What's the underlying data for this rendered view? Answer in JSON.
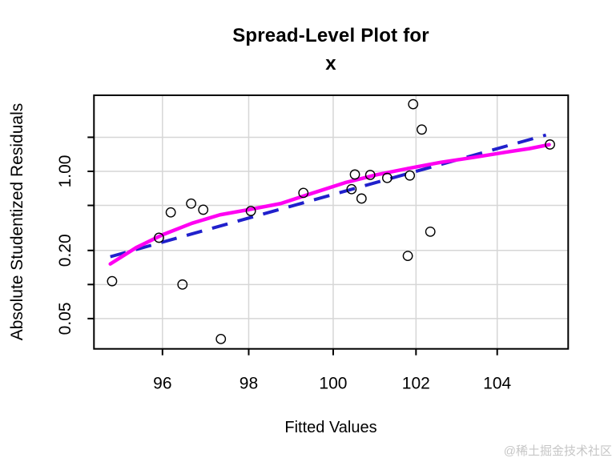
{
  "page": {
    "watermark": "@稀土掘金技术社区",
    "background": "#ffffff"
  },
  "chart_data": {
    "type": "scatter",
    "title_lines": [
      "Spread-Level Plot for",
      "x"
    ],
    "xlabel": "Fitted Values",
    "ylabel": "Absolute Studentized Residuals",
    "grid": {
      "show": true,
      "color": "#d6d6d6"
    },
    "x_axis": {
      "scale": "log",
      "range": [
        94.44,
        105.78
      ],
      "ticks": [
        {
          "value": 96,
          "label": "96"
        },
        {
          "value": 98,
          "label": "98"
        },
        {
          "value": 100,
          "label": "100"
        },
        {
          "value": 102,
          "label": "102"
        },
        {
          "value": 104,
          "label": "104"
        }
      ]
    },
    "y_axis": {
      "scale": "log",
      "range": [
        0.027,
        4.7
      ],
      "ticks": [
        {
          "value": 2.0,
          "label": ""
        },
        {
          "value": 1.0,
          "label": "1.00"
        },
        {
          "value": 0.5,
          "label": ""
        },
        {
          "value": 0.2,
          "label": "0.20"
        },
        {
          "value": 0.1,
          "label": ""
        },
        {
          "value": 0.05,
          "label": "0.05"
        }
      ]
    },
    "marker": {
      "shape": "open-circle",
      "stroke": "#000000",
      "radius": 5.7,
      "stroke_width": 1.4
    },
    "points": [
      [
        94.85,
        0.107
      ],
      [
        95.92,
        0.259
      ],
      [
        96.19,
        0.434
      ],
      [
        96.46,
        0.1
      ],
      [
        96.66,
        0.519
      ],
      [
        96.94,
        0.458
      ],
      [
        97.35,
        0.033
      ],
      [
        98.05,
        0.446
      ],
      [
        99.29,
        0.645
      ],
      [
        100.44,
        0.696
      ],
      [
        100.52,
        0.938
      ],
      [
        100.68,
        0.575
      ],
      [
        100.89,
        0.929
      ],
      [
        101.3,
        0.875
      ],
      [
        101.8,
        0.179
      ],
      [
        101.85,
        0.919
      ],
      [
        101.93,
        3.92
      ],
      [
        102.14,
        2.34
      ],
      [
        102.35,
        0.293
      ],
      [
        105.32,
        1.727
      ]
    ],
    "smooth_line": {
      "name": "lowess smooth",
      "color": "#ff00f2",
      "width": 4.5,
      "points": [
        [
          94.81,
          0.152
        ],
        [
          95.4,
          0.212
        ],
        [
          96.0,
          0.275
        ],
        [
          96.68,
          0.348
        ],
        [
          97.33,
          0.413
        ],
        [
          98.0,
          0.459
        ],
        [
          98.75,
          0.519
        ],
        [
          99.51,
          0.642
        ],
        [
          100.28,
          0.793
        ],
        [
          101.05,
          0.934
        ],
        [
          101.83,
          1.064
        ],
        [
          102.61,
          1.202
        ],
        [
          103.4,
          1.326
        ],
        [
          104.2,
          1.474
        ],
        [
          104.8,
          1.587
        ],
        [
          105.3,
          1.721
        ]
      ]
    },
    "fit_line": {
      "name": "linear fit",
      "color": "#2020cc",
      "width": 4,
      "dash": [
        20,
        13
      ],
      "points": [
        [
          94.81,
          0.176
        ],
        [
          105.22,
          2.094
        ]
      ]
    }
  }
}
